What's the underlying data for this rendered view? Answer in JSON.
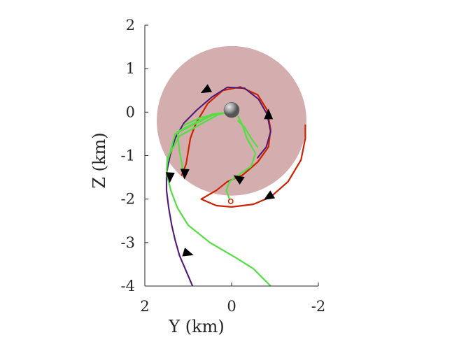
{
  "chart_data": {
    "type": "line",
    "title": "",
    "xlabel": "Y (km)",
    "ylabel": "Z (km)",
    "xlim": [
      2,
      -2
    ],
    "ylim": [
      -4,
      2
    ],
    "x_reversed": true,
    "x_ticks": [
      "2",
      "0",
      "-2"
    ],
    "x_tick_values": [
      2,
      0,
      -2
    ],
    "y_ticks": [
      "-4",
      "-3",
      "-2",
      "-1",
      "0",
      "1",
      "2"
    ],
    "y_tick_values": [
      -4,
      -3,
      -2,
      -1,
      0,
      1,
      2
    ],
    "grid": false,
    "colors": {
      "disk": "#d4aeae",
      "red": "#cc2200",
      "blue": "#1f1fb8",
      "green": "#55dd44",
      "sphere": "#888888",
      "arrow": "#000000"
    },
    "disk": {
      "center": [
        0.0,
        -0.2
      ],
      "radius": 1.72
    },
    "sphere": {
      "center": [
        0.0,
        0.05
      ]
    },
    "series": [
      {
        "color": "red",
        "points": [
          [
            0.9,
            -4.0
          ],
          [
            1.05,
            -3.65
          ],
          [
            1.2,
            -3.3
          ],
          [
            1.3,
            -2.95
          ],
          [
            1.38,
            -2.6
          ],
          [
            1.45,
            -2.2
          ],
          [
            1.5,
            -1.8
          ],
          [
            1.5,
            -1.4
          ],
          [
            1.42,
            -1.0
          ],
          [
            1.3,
            -0.6
          ],
          [
            1.1,
            -0.25
          ],
          [
            0.8,
            0.05
          ],
          [
            0.45,
            0.35
          ],
          [
            0.1,
            0.57
          ],
          [
            -0.3,
            0.55
          ],
          [
            -0.62,
            0.3
          ],
          [
            -0.82,
            -0.05
          ],
          [
            -0.9,
            -0.45
          ],
          [
            -0.8,
            -0.8
          ],
          [
            -0.6,
            -1.05
          ]
        ]
      },
      {
        "color": "red",
        "points": [
          [
            1.15,
            -1.45
          ],
          [
            1.05,
            -1.2
          ],
          [
            1.0,
            -0.9
          ],
          [
            0.95,
            -0.6
          ],
          [
            0.82,
            -0.25
          ],
          [
            0.55,
            0.2
          ],
          [
            0.2,
            0.5
          ],
          [
            -0.2,
            0.58
          ],
          [
            -0.6,
            0.4
          ],
          [
            -0.82,
            0.05
          ],
          [
            -0.9,
            -0.4
          ],
          [
            -0.85,
            -0.8
          ],
          [
            -0.6,
            -1.15
          ],
          [
            -0.25,
            -1.45
          ],
          [
            0.1,
            -1.6
          ],
          [
            0.35,
            -1.8
          ],
          [
            0.7,
            -2.0
          ],
          [
            0.35,
            -2.15
          ],
          [
            0.0,
            -2.18
          ],
          [
            -0.5,
            -2.12
          ],
          [
            -0.9,
            -1.95
          ],
          [
            -1.3,
            -1.6
          ],
          [
            -1.6,
            -1.1
          ],
          [
            -1.7,
            -0.6
          ],
          [
            -1.7,
            -0.3
          ]
        ]
      },
      {
        "color": "blue",
        "points": [
          [
            0.9,
            -4.0
          ],
          [
            1.05,
            -3.65
          ],
          [
            1.2,
            -3.3
          ],
          [
            1.3,
            -2.95
          ],
          [
            1.38,
            -2.6
          ],
          [
            1.45,
            -2.2
          ],
          [
            1.5,
            -1.8
          ],
          [
            1.5,
            -1.4
          ],
          [
            1.42,
            -1.0
          ],
          [
            1.3,
            -0.6
          ],
          [
            1.1,
            -0.25
          ],
          [
            0.8,
            0.05
          ],
          [
            0.45,
            0.35
          ],
          [
            0.1,
            0.57
          ],
          [
            -0.3,
            0.55
          ],
          [
            -0.62,
            0.3
          ],
          [
            -0.82,
            -0.05
          ],
          [
            -0.9,
            -0.45
          ],
          [
            -0.8,
            -0.8
          ],
          [
            -0.6,
            -1.05
          ]
        ]
      },
      {
        "color": "green",
        "points": [
          [
            -0.9,
            -4.0
          ],
          [
            -0.75,
            -3.85
          ],
          [
            -0.5,
            -3.6
          ],
          [
            -0.1,
            -3.35
          ],
          [
            0.5,
            -3.0
          ],
          [
            1.0,
            -2.6
          ],
          [
            1.25,
            -2.2
          ],
          [
            1.4,
            -1.8
          ],
          [
            1.5,
            -1.4
          ],
          [
            1.48,
            -1.05
          ],
          [
            1.2,
            -0.55
          ],
          [
            0.3,
            -0.05
          ],
          [
            0.05,
            0.0
          ]
        ]
      },
      {
        "color": "green",
        "points": [
          [
            1.48,
            -1.15
          ],
          [
            1.3,
            -0.5
          ],
          [
            0.4,
            -0.05
          ],
          [
            0.05,
            0.0
          ]
        ]
      },
      {
        "color": "green",
        "points": [
          [
            1.1,
            -1.45
          ],
          [
            1.2,
            -0.9
          ],
          [
            1.25,
            -0.45
          ],
          [
            0.45,
            -0.05
          ],
          [
            0.05,
            0.0
          ]
        ]
      },
      {
        "color": "green",
        "points": [
          [
            1.1,
            -0.3
          ],
          [
            0.7,
            -0.12
          ],
          [
            0.05,
            0.0
          ]
        ]
      },
      {
        "color": "green",
        "points": [
          [
            0.05,
            -2.0
          ],
          [
            0.12,
            -1.8
          ],
          [
            0.05,
            -1.6
          ],
          [
            -0.2,
            -1.42
          ],
          [
            -0.45,
            -1.25
          ],
          [
            -0.55,
            -0.95
          ],
          [
            -0.35,
            -0.6
          ],
          [
            -0.25,
            -0.3
          ],
          [
            -0.15,
            -0.1
          ]
        ]
      },
      {
        "color": "green",
        "points": [
          [
            -0.6,
            -0.8
          ],
          [
            -0.45,
            -0.6
          ],
          [
            -0.3,
            -0.35
          ],
          [
            -0.15,
            -0.2
          ]
        ]
      }
    ],
    "arrows": [
      {
        "at": [
          1.0,
          -3.25
        ],
        "dir": [
          -1.0,
          -0.3
        ]
      },
      {
        "at": [
          1.42,
          -1.5
        ],
        "dir": [
          0.05,
          -1.0
        ]
      },
      {
        "at": [
          1.08,
          -1.42
        ],
        "dir": [
          0.05,
          -1.0
        ]
      },
      {
        "at": [
          0.6,
          0.5
        ],
        "dir": [
          1.0,
          -0.55
        ]
      },
      {
        "at": [
          -0.85,
          -0.05
        ],
        "dir": [
          0.0,
          1.0
        ]
      },
      {
        "at": [
          -0.15,
          -1.52
        ],
        "dir": [
          0.85,
          0.55
        ]
      },
      {
        "at": [
          -0.85,
          -1.95
        ],
        "dir": [
          0.9,
          -0.55
        ]
      }
    ],
    "end_markers": [
      [
        0.02,
        -2.05
      ]
    ]
  }
}
